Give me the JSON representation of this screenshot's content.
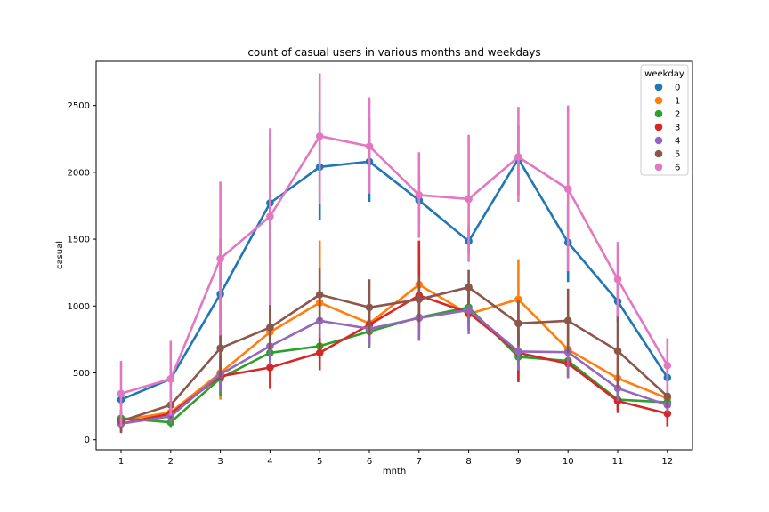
{
  "chart_data": {
    "type": "line",
    "title": "count of casual users in various months and weekdays",
    "xlabel": "mnth",
    "ylabel": "casual",
    "categories": [
      "1",
      "2",
      "3",
      "4",
      "5",
      "6",
      "7",
      "8",
      "9",
      "10",
      "11",
      "12"
    ],
    "ylim": [
      -75,
      2830
    ],
    "yticks": [
      0,
      500,
      1000,
      1500,
      2000,
      2500
    ],
    "grid": false,
    "legend": {
      "title": "weekday",
      "position": "top-right"
    },
    "series": [
      {
        "name": "0",
        "color": "#1f77b4",
        "values": [
          300,
          455,
          1090,
          1770,
          2040,
          2080,
          1790,
          1485,
          2100,
          1475,
          1035,
          465
        ],
        "ci_low": [
          250,
          400,
          750,
          1350,
          1640,
          1780,
          1620,
          1390,
          1830,
          1180,
          880,
          390
        ],
        "ci_high": [
          360,
          520,
          1500,
          2200,
          2450,
          2400,
          1980,
          1600,
          2350,
          1750,
          1200,
          540
        ]
      },
      {
        "name": "1",
        "color": "#ff7f0e",
        "values": [
          145,
          205,
          500,
          805,
          1025,
          870,
          1160,
          940,
          1050,
          675,
          460,
          310
        ],
        "ci_low": [
          100,
          140,
          300,
          600,
          820,
          740,
          960,
          820,
          720,
          480,
          330,
          240
        ],
        "ci_high": [
          200,
          280,
          760,
          1000,
          1490,
          990,
          1420,
          1060,
          1350,
          880,
          610,
          380
        ]
      },
      {
        "name": "2",
        "color": "#2ca02c",
        "values": [
          160,
          130,
          460,
          650,
          700,
          810,
          915,
          990,
          620,
          590,
          300,
          280
        ],
        "ci_low": [
          110,
          95,
          330,
          520,
          600,
          690,
          760,
          870,
          450,
          470,
          220,
          210
        ],
        "ci_high": [
          210,
          170,
          600,
          780,
          810,
          930,
          1080,
          1110,
          790,
          710,
          380,
          350
        ]
      },
      {
        "name": "3",
        "color": "#d62728",
        "values": [
          120,
          195,
          475,
          540,
          650,
          860,
          1080,
          950,
          650,
          570,
          290,
          195
        ],
        "ci_low": [
          60,
          130,
          370,
          380,
          520,
          720,
          800,
          820,
          430,
          460,
          200,
          100
        ],
        "ci_high": [
          180,
          260,
          580,
          700,
          780,
          1000,
          1490,
          1080,
          870,
          680,
          380,
          290
        ]
      },
      {
        "name": "4",
        "color": "#9467bd",
        "values": [
          120,
          175,
          490,
          700,
          890,
          830,
          910,
          970,
          660,
          655,
          385,
          260
        ],
        "ci_low": [
          70,
          120,
          360,
          560,
          760,
          700,
          740,
          790,
          520,
          460,
          290,
          200
        ],
        "ci_high": [
          170,
          230,
          620,
          840,
          1020,
          960,
          1080,
          1150,
          800,
          850,
          480,
          320
        ]
      },
      {
        "name": "5",
        "color": "#8c564b",
        "values": [
          140,
          260,
          685,
          840,
          1085,
          990,
          1050,
          1140,
          870,
          890,
          665,
          325
        ],
        "ci_low": [
          50,
          160,
          450,
          670,
          890,
          780,
          880,
          1010,
          700,
          650,
          390,
          240
        ],
        "ci_high": [
          230,
          360,
          900,
          1010,
          1280,
          1200,
          1220,
          1270,
          1040,
          1130,
          940,
          410
        ]
      },
      {
        "name": "6",
        "color": "#e377c2",
        "values": [
          345,
          455,
          1355,
          1670,
          2270,
          2195,
          1830,
          1800,
          2115,
          1875,
          1200,
          555
        ],
        "ci_low": [
          100,
          180,
          780,
          1010,
          1760,
          1840,
          1510,
          1330,
          1780,
          1260,
          920,
          350
        ],
        "ci_high": [
          590,
          740,
          1930,
          2330,
          2740,
          2560,
          2150,
          2280,
          2490,
          2500,
          1480,
          760
        ]
      }
    ]
  }
}
